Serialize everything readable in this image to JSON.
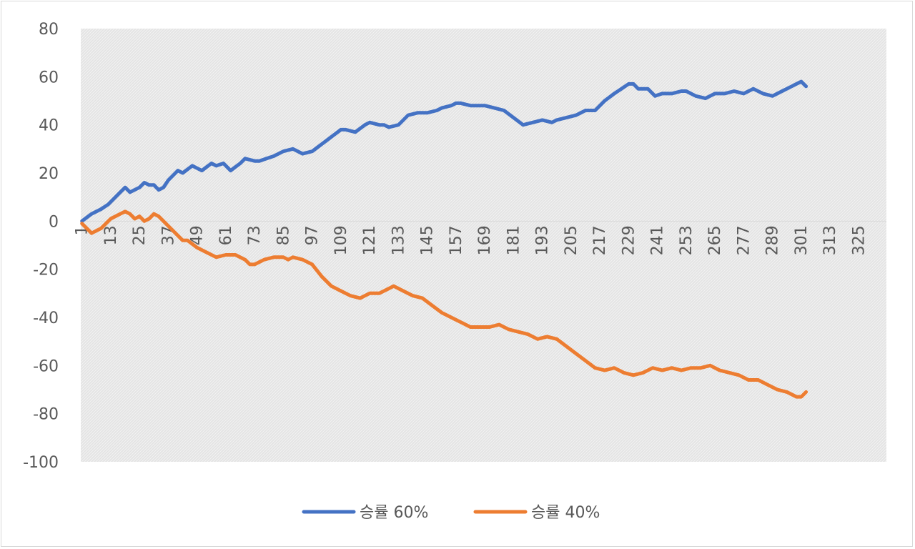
{
  "chart_data": {
    "type": "line",
    "title": "",
    "xlabel": "",
    "ylabel": "",
    "ylim": [
      -100,
      80
    ],
    "y_ticks": [
      80,
      60,
      40,
      20,
      0,
      -20,
      -40,
      -60,
      -80,
      -100
    ],
    "x_range": [
      1,
      336
    ],
    "x_ticks": [
      1,
      13,
      25,
      37,
      49,
      61,
      73,
      85,
      97,
      109,
      121,
      133,
      145,
      157,
      169,
      181,
      193,
      205,
      217,
      229,
      241,
      253,
      265,
      277,
      289,
      301,
      313,
      325
    ],
    "plot_background": "hatched-gray",
    "legend_position": "bottom",
    "series": [
      {
        "name": "승률 60%",
        "color": "#4472C4",
        "points": [
          [
            1,
            0
          ],
          [
            5,
            3
          ],
          [
            7,
            4
          ],
          [
            9,
            5
          ],
          [
            12,
            7
          ],
          [
            17,
            12
          ],
          [
            19,
            14
          ],
          [
            21,
            12
          ],
          [
            25,
            14
          ],
          [
            27,
            16
          ],
          [
            29,
            15
          ],
          [
            31,
            15
          ],
          [
            33,
            13
          ],
          [
            35,
            14
          ],
          [
            37,
            17
          ],
          [
            41,
            21
          ],
          [
            43,
            20
          ],
          [
            47,
            23
          ],
          [
            49,
            22
          ],
          [
            51,
            21
          ],
          [
            55,
            24
          ],
          [
            57,
            23
          ],
          [
            60,
            24
          ],
          [
            63,
            21
          ],
          [
            67,
            24
          ],
          [
            69,
            26
          ],
          [
            73,
            25
          ],
          [
            75,
            25
          ],
          [
            78,
            26
          ],
          [
            81,
            27
          ],
          [
            85,
            29
          ],
          [
            89,
            30
          ],
          [
            93,
            28
          ],
          [
            97,
            29
          ],
          [
            101,
            32
          ],
          [
            105,
            35
          ],
          [
            109,
            38
          ],
          [
            111,
            38
          ],
          [
            115,
            37
          ],
          [
            119,
            40
          ],
          [
            121,
            41
          ],
          [
            125,
            40
          ],
          [
            127,
            40
          ],
          [
            129,
            39
          ],
          [
            133,
            40
          ],
          [
            137,
            44
          ],
          [
            141,
            45
          ],
          [
            145,
            45
          ],
          [
            149,
            46
          ],
          [
            151,
            47
          ],
          [
            155,
            48
          ],
          [
            157,
            49
          ],
          [
            159,
            49
          ],
          [
            163,
            48
          ],
          [
            169,
            48
          ],
          [
            173,
            47
          ],
          [
            177,
            46
          ],
          [
            181,
            43
          ],
          [
            185,
            40
          ],
          [
            189,
            41
          ],
          [
            193,
            42
          ],
          [
            197,
            41
          ],
          [
            199,
            42
          ],
          [
            203,
            43
          ],
          [
            207,
            44
          ],
          [
            211,
            46
          ],
          [
            215,
            46
          ],
          [
            219,
            50
          ],
          [
            223,
            53
          ],
          [
            226,
            55
          ],
          [
            229,
            57
          ],
          [
            231,
            57
          ],
          [
            233,
            55
          ],
          [
            237,
            55
          ],
          [
            240,
            52
          ],
          [
            243,
            53
          ],
          [
            247,
            53
          ],
          [
            251,
            54
          ],
          [
            253,
            54
          ],
          [
            257,
            52
          ],
          [
            261,
            51
          ],
          [
            265,
            53
          ],
          [
            269,
            53
          ],
          [
            273,
            54
          ],
          [
            277,
            53
          ],
          [
            281,
            55
          ],
          [
            285,
            53
          ],
          [
            289,
            52
          ],
          [
            293,
            54
          ],
          [
            297,
            56
          ],
          [
            299,
            57
          ],
          [
            301,
            58
          ],
          [
            303,
            56
          ]
        ]
      },
      {
        "name": "승률 40%",
        "color": "#ED7D31",
        "points": [
          [
            1,
            -1
          ],
          [
            5,
            -5
          ],
          [
            9,
            -3
          ],
          [
            13,
            1
          ],
          [
            17,
            3
          ],
          [
            19,
            4
          ],
          [
            21,
            3
          ],
          [
            23,
            1
          ],
          [
            25,
            2
          ],
          [
            27,
            0
          ],
          [
            29,
            1
          ],
          [
            31,
            3
          ],
          [
            33,
            2
          ],
          [
            37,
            -2
          ],
          [
            41,
            -6
          ],
          [
            43,
            -8
          ],
          [
            45,
            -8
          ],
          [
            49,
            -11
          ],
          [
            53,
            -13
          ],
          [
            57,
            -15
          ],
          [
            61,
            -14
          ],
          [
            65,
            -14
          ],
          [
            69,
            -16
          ],
          [
            71,
            -18
          ],
          [
            73,
            -18
          ],
          [
            77,
            -16
          ],
          [
            81,
            -15
          ],
          [
            85,
            -15
          ],
          [
            87,
            -16
          ],
          [
            89,
            -15
          ],
          [
            93,
            -16
          ],
          [
            97,
            -18
          ],
          [
            101,
            -23
          ],
          [
            105,
            -27
          ],
          [
            109,
            -29
          ],
          [
            113,
            -31
          ],
          [
            117,
            -32
          ],
          [
            121,
            -30
          ],
          [
            125,
            -30
          ],
          [
            129,
            -28
          ],
          [
            131,
            -27
          ],
          [
            135,
            -29
          ],
          [
            139,
            -31
          ],
          [
            143,
            -32
          ],
          [
            147,
            -35
          ],
          [
            151,
            -38
          ],
          [
            155,
            -40
          ],
          [
            159,
            -42
          ],
          [
            163,
            -44
          ],
          [
            167,
            -44
          ],
          [
            171,
            -44
          ],
          [
            175,
            -43
          ],
          [
            179,
            -45
          ],
          [
            183,
            -46
          ],
          [
            187,
            -47
          ],
          [
            191,
            -49
          ],
          [
            195,
            -48
          ],
          [
            199,
            -49
          ],
          [
            203,
            -52
          ],
          [
            207,
            -55
          ],
          [
            211,
            -58
          ],
          [
            215,
            -61
          ],
          [
            219,
            -62
          ],
          [
            223,
            -61
          ],
          [
            227,
            -63
          ],
          [
            231,
            -64
          ],
          [
            235,
            -63
          ],
          [
            239,
            -61
          ],
          [
            243,
            -62
          ],
          [
            247,
            -61
          ],
          [
            251,
            -62
          ],
          [
            255,
            -61
          ],
          [
            259,
            -61
          ],
          [
            263,
            -60
          ],
          [
            267,
            -62
          ],
          [
            271,
            -63
          ],
          [
            275,
            -64
          ],
          [
            279,
            -66
          ],
          [
            283,
            -66
          ],
          [
            287,
            -68
          ],
          [
            291,
            -70
          ],
          [
            295,
            -71
          ],
          [
            299,
            -73
          ],
          [
            301,
            -73
          ],
          [
            303,
            -71
          ]
        ]
      }
    ]
  }
}
